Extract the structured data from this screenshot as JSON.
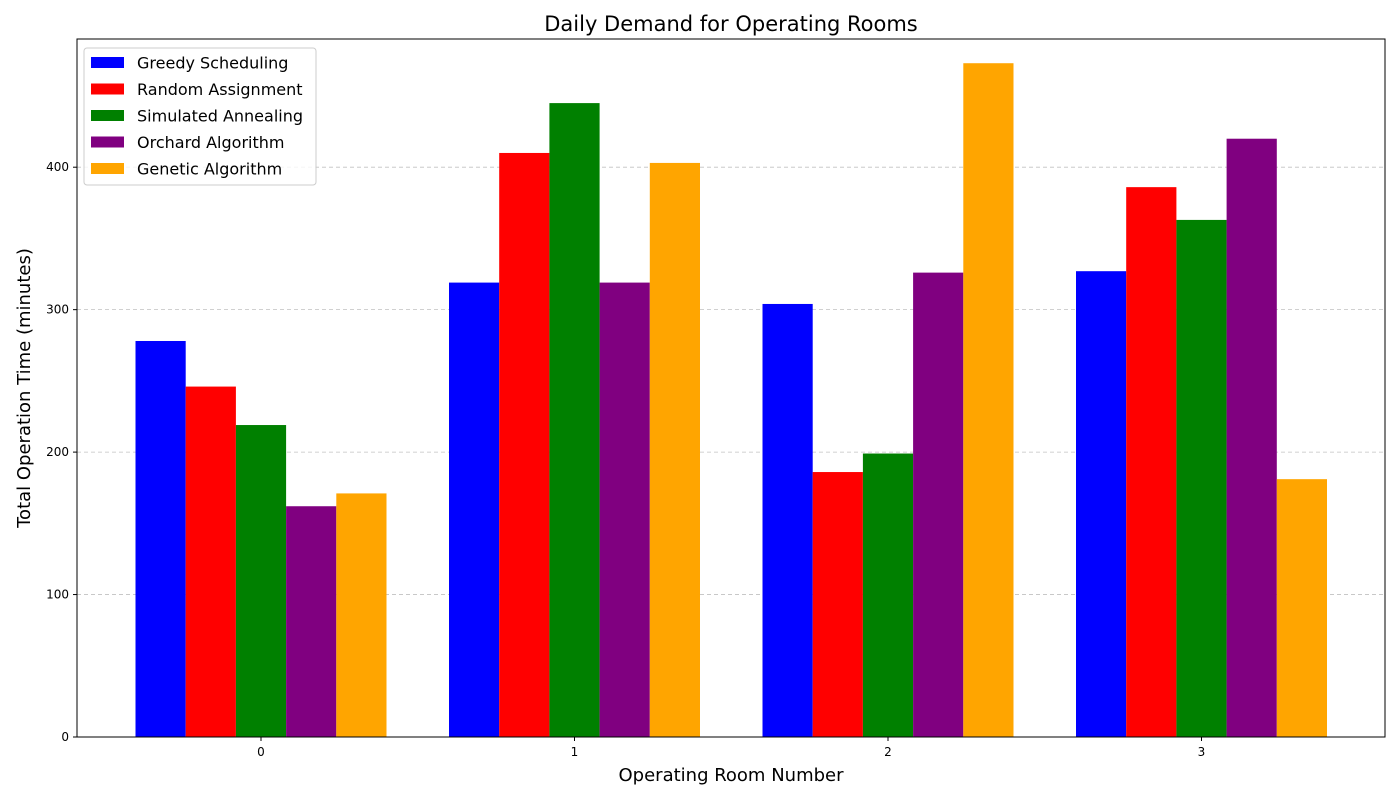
{
  "chart_data": {
    "type": "bar",
    "title": "Daily Demand for Operating Rooms",
    "xlabel": "Operating Room Number",
    "ylabel": "Total Operation Time (minutes)",
    "categories": [
      "0",
      "1",
      "2",
      "3"
    ],
    "ylim": [
      0,
      490
    ],
    "yticks": [
      "0",
      "100",
      "200",
      "300",
      "400"
    ],
    "grid": "horizontal dashed",
    "legend_position": "upper-left",
    "series": [
      {
        "name": "Greedy Scheduling",
        "color": "#0000ff",
        "values": [
          278,
          319,
          304,
          327
        ]
      },
      {
        "name": "Random Assignment",
        "color": "#ff0000",
        "values": [
          246,
          410,
          186,
          386
        ]
      },
      {
        "name": "Simulated Annealing",
        "color": "#008000",
        "values": [
          219,
          445,
          199,
          363
        ]
      },
      {
        "name": "Orchard Algorithm",
        "color": "#800080",
        "values": [
          162,
          319,
          326,
          420
        ]
      },
      {
        "name": "Genetic Algorithm",
        "color": "#ffa500",
        "values": [
          171,
          403,
          473,
          181
        ]
      }
    ]
  }
}
